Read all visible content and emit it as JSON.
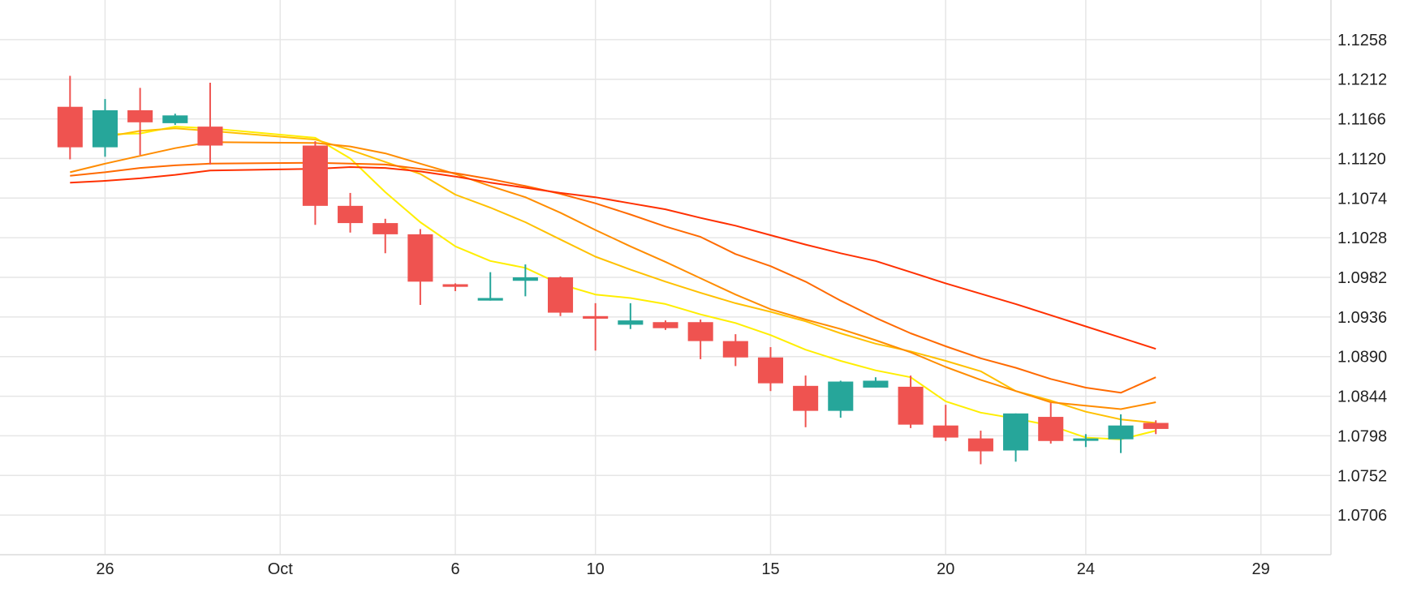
{
  "chart_data": {
    "type": "candlestick",
    "title": "",
    "xlabel": "",
    "ylabel": "",
    "grid": true,
    "x_ticks": [
      {
        "label": "26",
        "date": "2023-09-26"
      },
      {
        "label": "Oct",
        "date": "2023-10-01"
      },
      {
        "label": "6",
        "date": "2023-10-06"
      },
      {
        "label": "10",
        "date": "2023-10-10"
      },
      {
        "label": "15",
        "date": "2023-10-15"
      },
      {
        "label": "20",
        "date": "2023-10-20"
      },
      {
        "label": "24",
        "date": "2023-10-24"
      },
      {
        "label": "29",
        "date": "2023-10-29"
      }
    ],
    "y_ticks": [
      "1.0706",
      "1.0752",
      "1.0798",
      "1.0844",
      "1.0890",
      "1.0936",
      "1.0982",
      "1.1028",
      "1.1074",
      "1.1120",
      "1.1166",
      "1.1212",
      "1.1258"
    ],
    "x_range": [
      "2023-09-23",
      "2023-10-31"
    ],
    "ylim": [
      1.066,
      1.1304
    ],
    "up_color": "#26a69a",
    "down_color": "#ef5350",
    "candles": [
      {
        "date": "2023-09-25",
        "open": 1.118,
        "high": 1.1216,
        "low": 1.1119,
        "close": 1.1133
      },
      {
        "date": "2023-09-26",
        "open": 1.1133,
        "high": 1.1189,
        "low": 1.1122,
        "close": 1.1176
      },
      {
        "date": "2023-09-27",
        "open": 1.1176,
        "high": 1.1202,
        "low": 1.1124,
        "close": 1.1162
      },
      {
        "date": "2023-09-28",
        "open": 1.1161,
        "high": 1.1172,
        "low": 1.1159,
        "close": 1.117
      },
      {
        "date": "2023-09-29",
        "open": 1.1157,
        "high": 1.1208,
        "low": 1.1113,
        "close": 1.1135
      },
      {
        "date": "2023-10-02",
        "open": 1.1135,
        "high": 1.114,
        "low": 1.1043,
        "close": 1.1065
      },
      {
        "date": "2023-10-03",
        "open": 1.1065,
        "high": 1.108,
        "low": 1.1034,
        "close": 1.1045
      },
      {
        "date": "2023-10-04",
        "open": 1.1045,
        "high": 1.105,
        "low": 1.101,
        "close": 1.1032
      },
      {
        "date": "2023-10-05",
        "open": 1.1032,
        "high": 1.1038,
        "low": 1.095,
        "close": 1.0977
      },
      {
        "date": "2023-10-06",
        "open": 1.0974,
        "high": 1.0975,
        "low": 1.0966,
        "close": 1.0971
      },
      {
        "date": "2023-10-07",
        "open": 1.0955,
        "high": 1.0988,
        "low": 1.0955,
        "close": 1.0958
      },
      {
        "date": "2023-10-08",
        "open": 1.0978,
        "high": 1.0997,
        "low": 1.096,
        "close": 1.0982
      },
      {
        "date": "2023-10-09",
        "open": 1.0982,
        "high": 1.0983,
        "low": 1.0937,
        "close": 1.0941
      },
      {
        "date": "2023-10-10",
        "open": 1.0937,
        "high": 1.0952,
        "low": 1.0897,
        "close": 1.0934
      },
      {
        "date": "2023-10-11",
        "open": 1.0927,
        "high": 1.0952,
        "low": 1.0922,
        "close": 1.0932
      },
      {
        "date": "2023-10-12",
        "open": 1.093,
        "high": 1.0932,
        "low": 1.0921,
        "close": 1.0923
      },
      {
        "date": "2023-10-13",
        "open": 1.093,
        "high": 1.0933,
        "low": 1.0887,
        "close": 1.0908
      },
      {
        "date": "2023-10-14",
        "open": 1.0908,
        "high": 1.0916,
        "low": 1.0879,
        "close": 1.0889
      },
      {
        "date": "2023-10-15",
        "open": 1.0889,
        "high": 1.0901,
        "low": 1.085,
        "close": 1.0859
      },
      {
        "date": "2023-10-16",
        "open": 1.0856,
        "high": 1.0868,
        "low": 1.0808,
        "close": 1.0827
      },
      {
        "date": "2023-10-17",
        "open": 1.0827,
        "high": 1.0862,
        "low": 1.0819,
        "close": 1.0861
      },
      {
        "date": "2023-10-18",
        "open": 1.0854,
        "high": 1.0866,
        "low": 1.0854,
        "close": 1.0862
      },
      {
        "date": "2023-10-19",
        "open": 1.0855,
        "high": 1.0868,
        "low": 1.0807,
        "close": 1.0811
      },
      {
        "date": "2023-10-20",
        "open": 1.081,
        "high": 1.0834,
        "low": 1.0792,
        "close": 1.0796
      },
      {
        "date": "2023-10-21",
        "open": 1.0795,
        "high": 1.0804,
        "low": 1.0765,
        "close": 1.078
      },
      {
        "date": "2023-10-22",
        "open": 1.0781,
        "high": 1.0824,
        "low": 1.0768,
        "close": 1.0824
      },
      {
        "date": "2023-10-23",
        "open": 1.082,
        "high": 1.0836,
        "low": 1.0789,
        "close": 1.0792
      },
      {
        "date": "2023-10-24",
        "open": 1.0794,
        "high": 1.08,
        "low": 1.0785,
        "close": 1.0795
      },
      {
        "date": "2023-10-25",
        "open": 1.0794,
        "high": 1.0823,
        "low": 1.0778,
        "close": 1.081
      },
      {
        "date": "2023-10-26",
        "open": 1.0813,
        "high": 1.0816,
        "low": 1.08,
        "close": 1.0806
      }
    ],
    "moving_averages": [
      {
        "color": "#ffee00",
        "values": [
          null,
          1.1148,
          1.1149,
          1.1157,
          1.1155,
          1.1144,
          1.112,
          1.1081,
          1.1046,
          1.1018,
          1.1001,
          1.0993,
          1.0974,
          1.0962,
          1.0958,
          1.0951,
          1.0939,
          1.0929,
          1.0915,
          1.0898,
          1.0885,
          1.0874,
          1.0866,
          1.0838,
          1.0825,
          1.0818,
          1.081,
          1.0796,
          1.0794,
          1.0804
        ]
      },
      {
        "color": "#ffc000",
        "values": [
          null,
          1.1145,
          1.1152,
          1.1155,
          1.1152,
          1.1142,
          1.113,
          1.1116,
          1.1102,
          1.1078,
          1.1063,
          1.1046,
          1.1026,
          1.1006,
          1.0991,
          1.0977,
          1.0964,
          1.0952,
          1.0942,
          1.0931,
          1.0917,
          1.0905,
          1.0896,
          1.0885,
          1.0873,
          1.085,
          1.0839,
          1.0826,
          1.0817,
          1.0813
        ]
      },
      {
        "color": "#ff8c00",
        "values": [
          1.1104,
          1.1114,
          1.1123,
          1.1132,
          1.1139,
          1.1138,
          1.1134,
          1.1126,
          1.1114,
          1.1102,
          1.1088,
          1.1075,
          1.1057,
          1.1037,
          1.1018,
          1.1,
          1.0981,
          1.0962,
          1.0945,
          1.0933,
          1.0922,
          1.0909,
          1.0895,
          1.0878,
          1.0863,
          1.085,
          1.0837,
          1.0833,
          1.0829,
          1.0837
        ]
      },
      {
        "color": "#ff6a00",
        "values": [
          1.11,
          1.1104,
          1.1109,
          1.1112,
          1.1114,
          1.1115,
          1.1114,
          1.1113,
          1.1108,
          1.1103,
          1.1096,
          1.1088,
          1.1079,
          1.1068,
          1.1055,
          1.1041,
          1.1029,
          1.1009,
          1.0995,
          1.0977,
          1.0955,
          1.0935,
          1.0917,
          1.0902,
          1.0888,
          1.0877,
          1.0864,
          1.0854,
          1.0848,
          1.0866
        ]
      },
      {
        "color": "#ff3000",
        "values": [
          1.1092,
          1.1094,
          1.1097,
          1.1101,
          1.1106,
          1.1108,
          1.111,
          1.1109,
          1.1105,
          1.1099,
          1.1092,
          1.1086,
          1.108,
          1.1075,
          1.1068,
          1.1061,
          1.1051,
          1.1042,
          1.1031,
          1.102,
          1.101,
          1.1001,
          1.0988,
          1.0975,
          1.0963,
          1.0951,
          1.0938,
          1.0925,
          1.0912,
          1.0899
        ]
      }
    ]
  }
}
